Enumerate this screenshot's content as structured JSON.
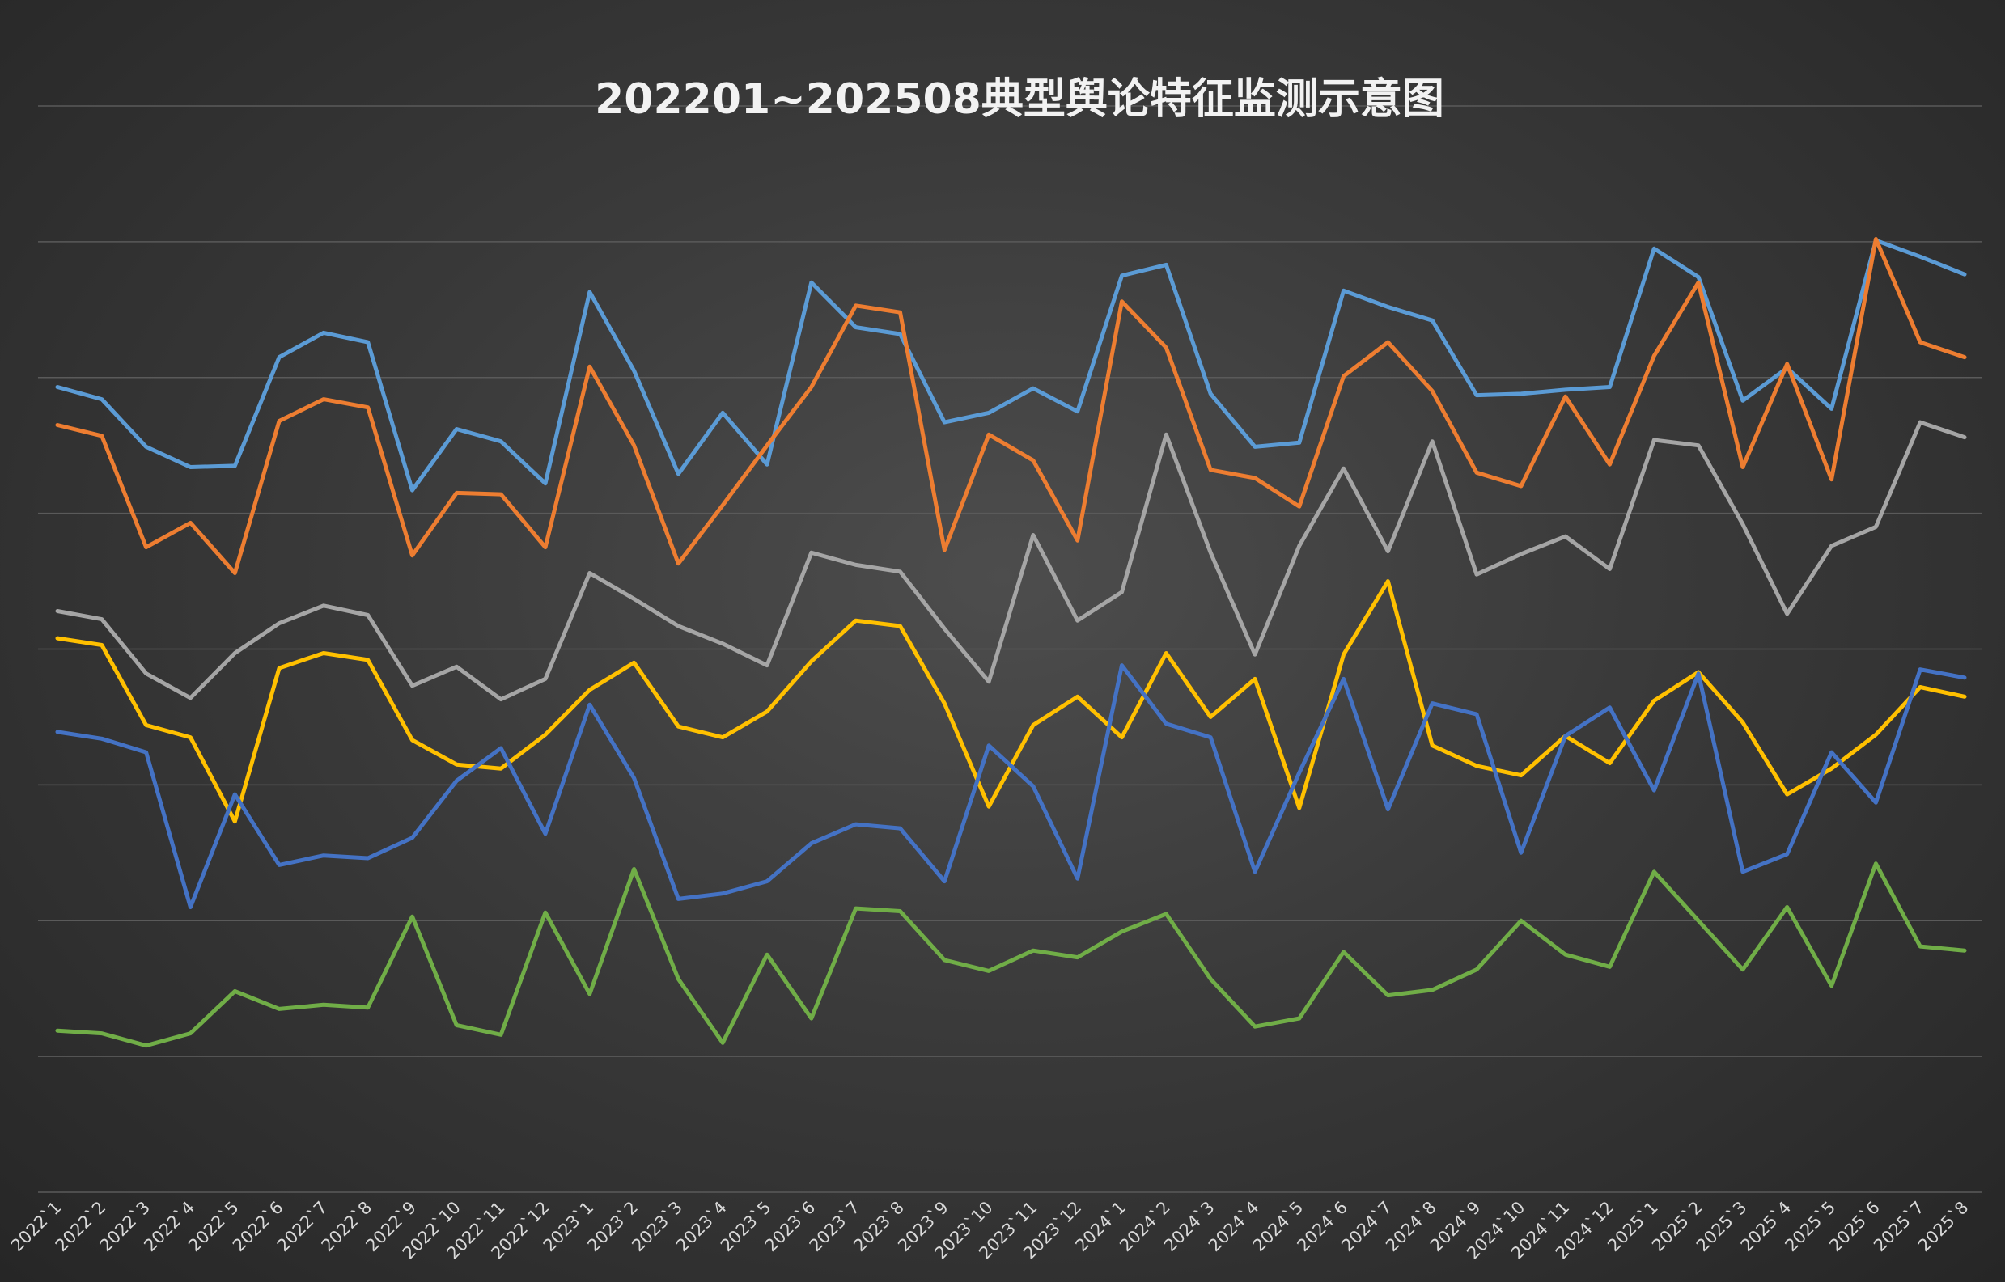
{
  "chart_data": {
    "type": "line",
    "title": "202201~202508典型舆论特征监测示意图",
    "xlabel": "",
    "ylabel": "",
    "ylim": [
      0,
      8
    ],
    "grid": true,
    "legend": "none",
    "categories": [
      "2022`1",
      "2022`2",
      "2022`3",
      "2022`4",
      "2022`5",
      "2022`6",
      "2022`7",
      "2022`8",
      "2022`9",
      "2022`10",
      "2022`11",
      "2022`12",
      "2023`1",
      "2023`2",
      "2023`3",
      "2023`4",
      "2023`5",
      "2023`6",
      "2023`7",
      "2023`8",
      "2023`9",
      "2023`10",
      "2023`11",
      "2023`12",
      "2024`1",
      "2024`2",
      "2024`3",
      "2024`4",
      "2024`5",
      "2024`6",
      "2024`7",
      "2024`8",
      "2024`9",
      "2024`10",
      "2024`11",
      "2024`12",
      "2025`1",
      "2025`2",
      "2025`3",
      "2025`4",
      "2025`5",
      "2025`6",
      "2025`7",
      "2025`8"
    ],
    "series": [
      {
        "color": "#5b9bd5",
        "values": [
          5.93,
          5.84,
          5.49,
          5.34,
          5.35,
          6.15,
          6.33,
          6.26,
          5.17,
          5.62,
          5.53,
          5.22,
          6.63,
          6.05,
          5.29,
          5.74,
          5.36,
          6.7,
          6.37,
          6.32,
          5.67,
          5.74,
          5.92,
          5.75,
          6.75,
          6.83,
          5.88,
          5.49,
          5.52,
          6.64,
          6.52,
          6.42,
          5.87,
          5.88,
          5.91,
          5.93,
          6.95,
          6.74,
          5.83,
          6.07,
          5.77,
          7.01,
          6.89,
          6.76
        ]
      },
      {
        "color": "#ed7d31",
        "values": [
          5.65,
          5.57,
          4.75,
          4.93,
          4.56,
          5.68,
          5.84,
          5.78,
          4.69,
          5.15,
          5.14,
          4.75,
          6.08,
          5.5,
          4.63,
          5.06,
          5.5,
          5.93,
          6.53,
          6.48,
          4.73,
          5.58,
          5.39,
          4.8,
          6.56,
          6.22,
          5.32,
          5.26,
          5.05,
          6.01,
          6.26,
          5.9,
          5.3,
          5.2,
          5.86,
          5.36,
          6.16,
          6.7,
          5.34,
          6.1,
          5.25,
          7.02,
          6.26,
          6.15
        ]
      },
      {
        "color": "#a5a5a5",
        "values": [
          4.28,
          4.22,
          3.82,
          3.64,
          3.97,
          4.19,
          4.32,
          4.25,
          3.73,
          3.87,
          3.63,
          3.78,
          4.56,
          4.37,
          4.17,
          4.04,
          3.88,
          4.71,
          4.62,
          4.57,
          4.15,
          3.76,
          4.84,
          4.21,
          4.42,
          5.58,
          4.71,
          3.96,
          4.76,
          5.33,
          4.72,
          5.53,
          4.55,
          4.7,
          4.83,
          4.59,
          5.54,
          5.5,
          4.92,
          4.26,
          4.76,
          4.9,
          5.67,
          5.56
        ]
      },
      {
        "color": "#ffc000",
        "values": [
          4.08,
          4.03,
          3.44,
          3.35,
          2.73,
          3.86,
          3.97,
          3.92,
          3.33,
          3.15,
          3.12,
          3.37,
          3.7,
          3.9,
          3.43,
          3.35,
          3.54,
          3.91,
          4.21,
          4.17,
          3.6,
          2.84,
          3.44,
          3.65,
          3.35,
          3.97,
          3.5,
          3.78,
          2.83,
          3.96,
          4.5,
          3.29,
          3.14,
          3.07,
          3.36,
          3.16,
          3.62,
          3.83,
          3.46,
          2.93,
          3.12,
          3.37,
          3.72,
          3.65
        ]
      },
      {
        "color": "#4472c4",
        "values": [
          3.39,
          3.34,
          3.24,
          2.1,
          2.93,
          2.41,
          2.48,
          2.46,
          2.61,
          3.03,
          3.27,
          2.64,
          3.59,
          3.05,
          2.16,
          2.2,
          2.29,
          2.57,
          2.71,
          2.68,
          2.29,
          3.29,
          2.99,
          2.31,
          3.88,
          3.45,
          3.35,
          2.36,
          3.09,
          3.78,
          2.82,
          3.6,
          3.52,
          2.5,
          3.36,
          3.57,
          2.96,
          3.82,
          2.36,
          2.49,
          3.24,
          2.87,
          3.85,
          3.79
        ]
      },
      {
        "color": "#70ad47",
        "values": [
          1.19,
          1.17,
          1.08,
          1.17,
          1.48,
          1.35,
          1.38,
          1.36,
          2.03,
          1.23,
          1.16,
          2.06,
          1.46,
          2.38,
          1.57,
          1.1,
          1.75,
          1.28,
          2.09,
          2.07,
          1.71,
          1.63,
          1.78,
          1.73,
          1.92,
          2.05,
          1.57,
          1.22,
          1.28,
          1.77,
          1.45,
          1.49,
          1.64,
          2.0,
          1.75,
          1.66,
          2.36,
          2.0,
          1.64,
          2.1,
          1.52,
          2.42,
          1.81,
          1.78
        ]
      }
    ]
  }
}
